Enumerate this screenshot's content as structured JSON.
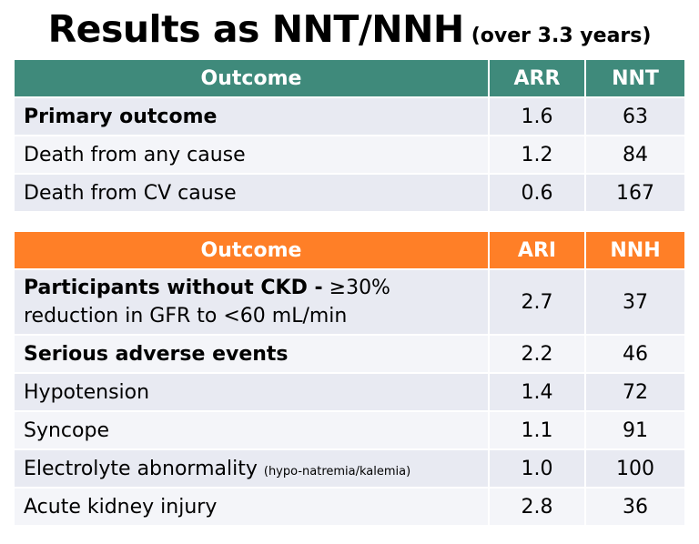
{
  "title": {
    "main": "Results as NNT/NNH",
    "sub": "(over 3.3 years)"
  },
  "colors": {
    "nnt_header": "#3f8a7b",
    "nnh_header": "#ff7f27",
    "row_alt": "#e8eaf2",
    "row_plain": "#f4f5f9"
  },
  "nnt_table": {
    "headers": [
      "Outcome",
      "ARR",
      "NNT"
    ],
    "rows": [
      {
        "outcome": "Primary outcome",
        "value": "1.6",
        "n": "63"
      },
      {
        "outcome": "Death from any cause",
        "value": "1.2",
        "n": "84"
      },
      {
        "outcome": "Death from CV cause",
        "value": "0.6",
        "n": "167"
      }
    ]
  },
  "nnh_table": {
    "headers": [
      "Outcome",
      "ARI",
      "NNH"
    ],
    "rows": [
      {
        "outcome_bold": "Participants without CKD -",
        "outcome_rest": " ≥30% reduction in GFR to <60 mL/min",
        "value": "2.7",
        "n": "37"
      },
      {
        "outcome": "Serious adverse events",
        "value": "2.2",
        "n": "46"
      },
      {
        "outcome": "Hypotension",
        "value": "1.4",
        "n": "72"
      },
      {
        "outcome": "Syncope",
        "value": "1.1",
        "n": "91"
      },
      {
        "outcome": "Electrolyte abnormality",
        "outcome_note": "(hypo-natremia/kalemia)",
        "value": "1.0",
        "n": "100"
      },
      {
        "outcome": "Acute kidney injury",
        "value": "2.8",
        "n": "36"
      }
    ]
  }
}
